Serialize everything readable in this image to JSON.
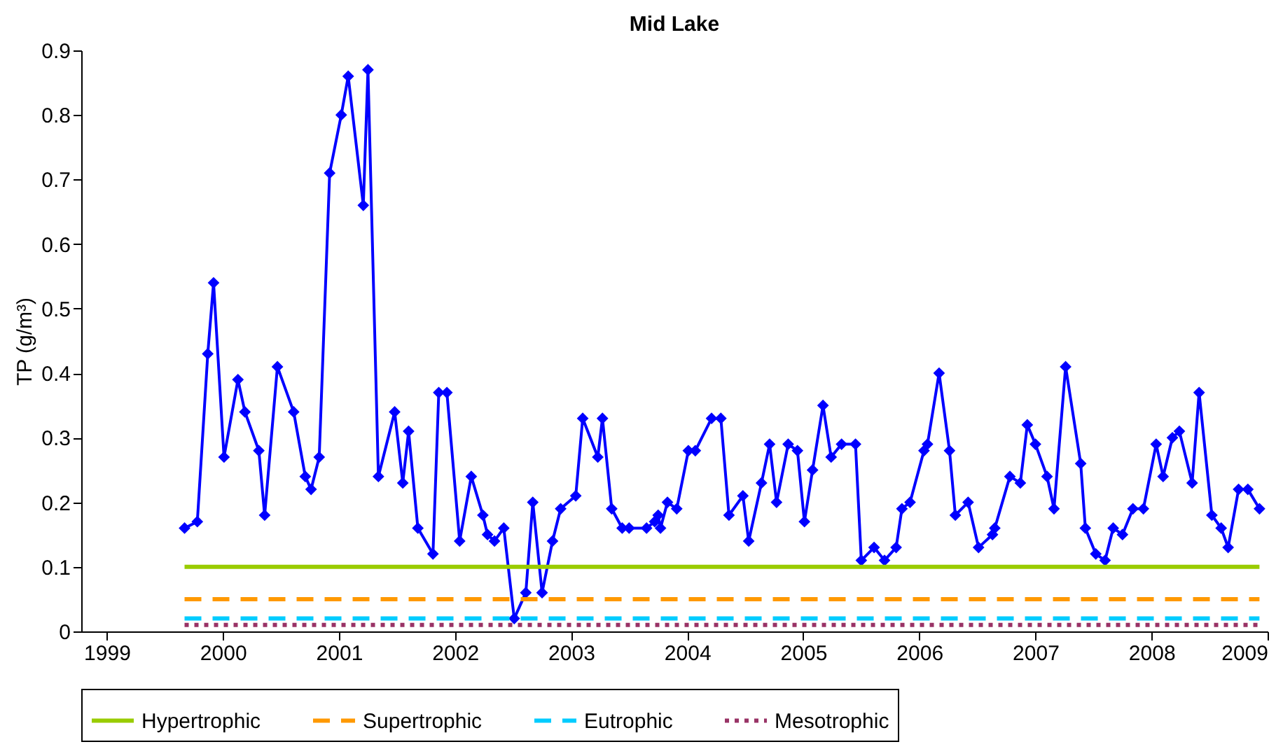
{
  "chart_data": {
    "type": "line",
    "title": "Mid Lake",
    "ylabel": "TP (g/m³)",
    "xlim": [
      1998.78,
      2009
    ],
    "xticks": [
      1999,
      2000,
      2001,
      2002,
      2003,
      2004,
      2005,
      2006,
      2007,
      2008,
      2009
    ],
    "ylim": [
      0,
      0.9
    ],
    "yticks": [
      0,
      0.1,
      0.2,
      0.3,
      0.4,
      0.5,
      0.6,
      0.7,
      0.8,
      0.9
    ],
    "grid": false,
    "legend": "bottom",
    "series": [
      {
        "color": "#0000ff",
        "marker": "diamond",
        "line_style": "solid",
        "x": [
          1999.67,
          1999.78,
          1999.87,
          1999.92,
          2000.01,
          2000.13,
          2000.19,
          2000.31,
          2000.36,
          2000.47,
          2000.61,
          2000.71,
          2000.76,
          2000.83,
          2000.92,
          2001.02,
          2001.08,
          2001.21,
          2001.25,
          2001.34,
          2001.48,
          2001.55,
          2001.6,
          2001.68,
          2001.81,
          2001.86,
          2001.93,
          2002.04,
          2002.14,
          2002.24,
          2002.28,
          2002.34,
          2002.42,
          2002.51,
          2002.61,
          2002.67,
          2002.75,
          2002.84,
          2002.91,
          2003.04,
          2003.1,
          2003.23,
          2003.27,
          2003.35,
          2003.44,
          2003.5,
          2003.65,
          2003.72,
          2003.75,
          2003.77,
          2003.83,
          2003.91,
          2004.01,
          2004.07,
          2004.21,
          2004.29,
          2004.36,
          2004.48,
          2004.53,
          2004.64,
          2004.71,
          2004.77,
          2004.87,
          2004.95,
          2005.01,
          2005.08,
          2005.17,
          2005.24,
          2005.33,
          2005.45,
          2005.5,
          2005.61,
          2005.7,
          2005.8,
          2005.85,
          2005.92,
          2006.04,
          2006.07,
          2006.17,
          2006.26,
          2006.31,
          2006.42,
          2006.51,
          2006.63,
          2006.65,
          2006.78,
          2006.87,
          2006.93,
          2007.0,
          2007.1,
          2007.16,
          2007.26,
          2007.39,
          2007.43,
          2007.52,
          2007.6,
          2007.67,
          2007.75,
          2007.84,
          2007.93,
          2008.04,
          2008.1,
          2008.18,
          2008.24,
          2008.35,
          2008.41,
          2008.52,
          2008.6,
          2008.66,
          2008.75,
          2008.83,
          2008.93
        ],
        "values": [
          0.16,
          0.17,
          0.43,
          0.54,
          0.27,
          0.39,
          0.34,
          0.28,
          0.18,
          0.41,
          0.34,
          0.24,
          0.22,
          0.27,
          0.71,
          0.8,
          0.86,
          0.66,
          0.87,
          0.24,
          0.34,
          0.23,
          0.31,
          0.16,
          0.12,
          0.37,
          0.37,
          0.14,
          0.24,
          0.18,
          0.15,
          0.14,
          0.16,
          0.02,
          0.06,
          0.2,
          0.06,
          0.14,
          0.19,
          0.21,
          0.33,
          0.27,
          0.33,
          0.19,
          0.16,
          0.16,
          0.16,
          0.17,
          0.18,
          0.16,
          0.2,
          0.19,
          0.28,
          0.28,
          0.33,
          0.33,
          0.18,
          0.21,
          0.14,
          0.23,
          0.29,
          0.2,
          0.29,
          0.28,
          0.17,
          0.25,
          0.35,
          0.27,
          0.29,
          0.29,
          0.11,
          0.13,
          0.11,
          0.13,
          0.19,
          0.2,
          0.28,
          0.29,
          0.4,
          0.28,
          0.18,
          0.2,
          0.13,
          0.15,
          0.16,
          0.24,
          0.23,
          0.32,
          0.29,
          0.24,
          0.19,
          0.41,
          0.26,
          0.16,
          0.12,
          0.11,
          0.16,
          0.15,
          0.19,
          0.19,
          0.29,
          0.24,
          0.3,
          0.31,
          0.23,
          0.37,
          0.18,
          0.16,
          0.13,
          0.22,
          0.22,
          0.19
        ]
      },
      {
        "name": "Hypertrophic",
        "color": "#99cc00",
        "marker": "none",
        "line_style": "solid",
        "x": [
          1999.67,
          2008.93
        ],
        "values": [
          0.1,
          0.1
        ]
      },
      {
        "name": "Supertrophic",
        "color": "#ff9900",
        "marker": "none",
        "line_style": "dashed",
        "x": [
          1999.67,
          2008.93
        ],
        "values": [
          0.05,
          0.05
        ]
      },
      {
        "name": "Eutrophic",
        "color": "#00ccff",
        "marker": "none",
        "line_style": "dashed",
        "x": [
          1999.67,
          2008.93
        ],
        "values": [
          0.02,
          0.02
        ]
      },
      {
        "name": "Mesotrophic",
        "color": "#993366",
        "marker": "none",
        "line_style": "dotted",
        "x": [
          1999.67,
          2008.93
        ],
        "values": [
          0.01,
          0.01
        ]
      }
    ]
  }
}
